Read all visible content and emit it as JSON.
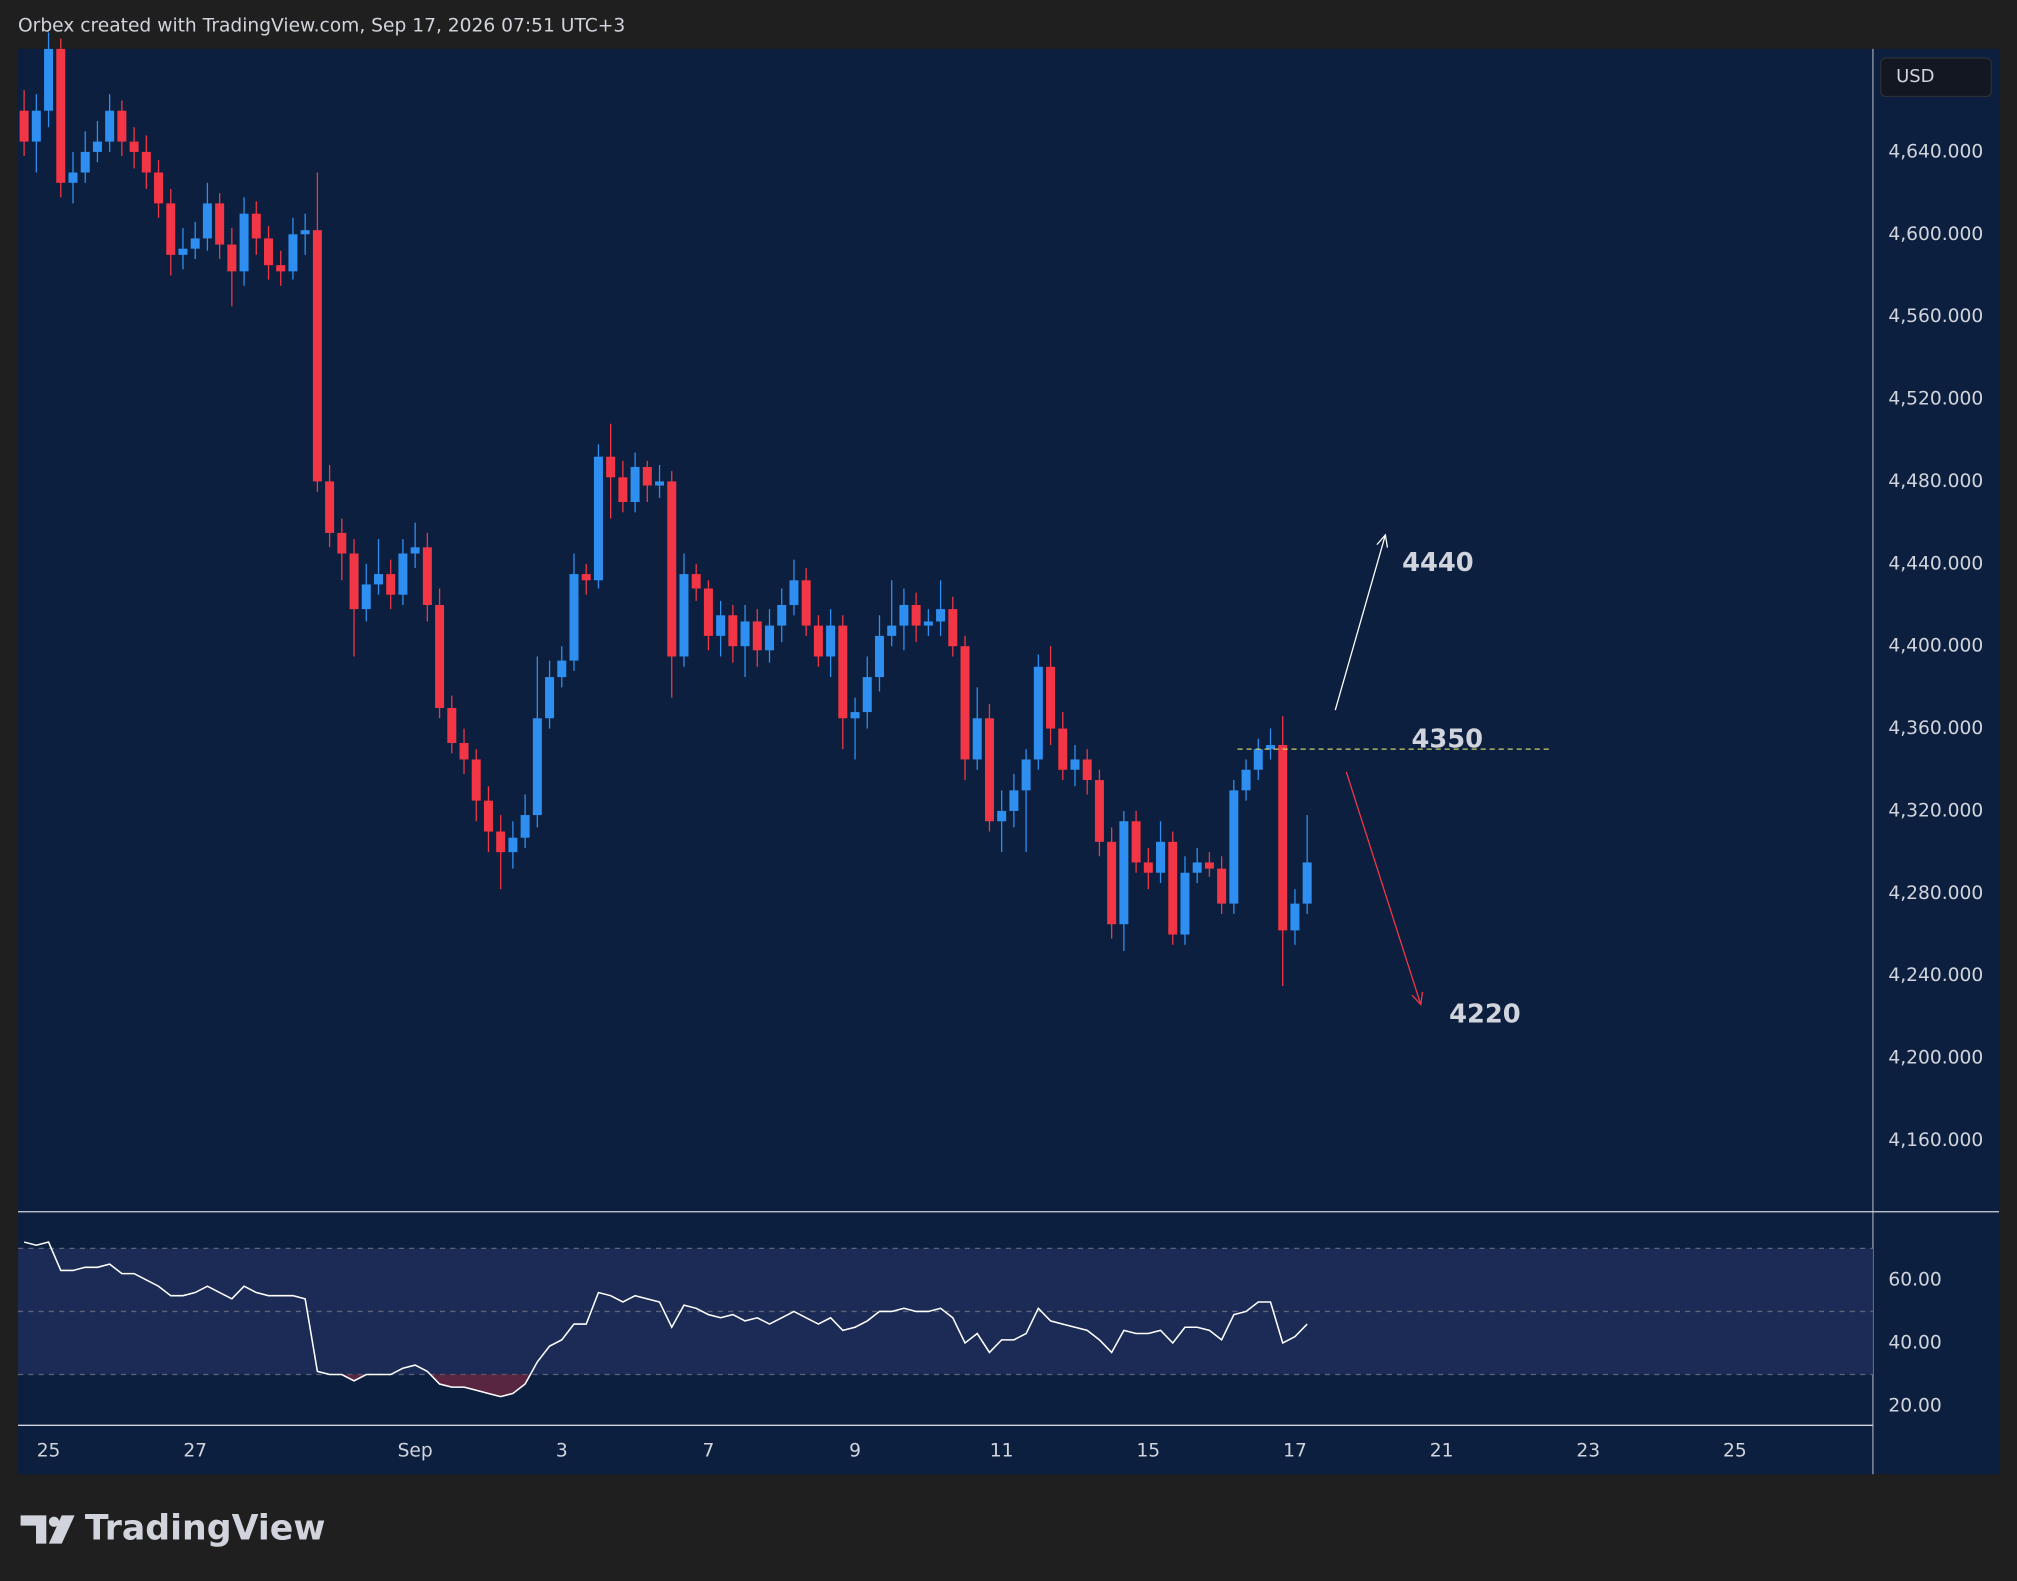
{
  "header": {
    "text": "Orbex created with TradingView.com, Sep 17, 2026 07:51 UTC+3"
  },
  "footer": {
    "brand": "TradingView"
  },
  "chart_data": [
    {
      "type": "candlestick",
      "currency": "USD",
      "up_color": "#2e8ff0",
      "down_color": "#f23645",
      "xlim": [
        -0.5,
        151.3
      ],
      "ylim": [
        4126,
        4690
      ],
      "xticks": [
        {
          "value": 2,
          "label": "25"
        },
        {
          "value": 14,
          "label": "27"
        },
        {
          "value": 32,
          "label": "Sep"
        },
        {
          "value": 44,
          "label": "3"
        },
        {
          "value": 56,
          "label": "7"
        },
        {
          "value": 68,
          "label": "9"
        },
        {
          "value": 80,
          "label": "11"
        },
        {
          "value": 92,
          "label": "15"
        },
        {
          "value": 104,
          "label": "17"
        },
        {
          "value": 116,
          "label": "21"
        },
        {
          "value": 128,
          "label": "23"
        },
        {
          "value": 140,
          "label": "25"
        }
      ],
      "yticks": [
        {
          "value": 4160,
          "label": "4,160.000"
        },
        {
          "value": 4200,
          "label": "4,200.000"
        },
        {
          "value": 4240,
          "label": "4,240.000"
        },
        {
          "value": 4280,
          "label": "4,280.000"
        },
        {
          "value": 4320,
          "label": "4,320.000"
        },
        {
          "value": 4360,
          "label": "4,360.000"
        },
        {
          "value": 4400,
          "label": "4,400.000"
        },
        {
          "value": 4440,
          "label": "4,440.000"
        },
        {
          "value": 4480,
          "label": "4,480.000"
        },
        {
          "value": 4520,
          "label": "4,520.000"
        },
        {
          "value": 4560,
          "label": "4,560.000"
        },
        {
          "value": 4600,
          "label": "4,600.000"
        },
        {
          "value": 4640,
          "label": "4,640.000"
        }
      ],
      "open": [
        4660,
        4645,
        4660,
        4690,
        4625,
        4630,
        4640,
        4645,
        4660,
        4645,
        4640,
        4630,
        4615,
        4590,
        4593,
        4598,
        4615,
        4595,
        4582,
        4610,
        4598,
        4585,
        4582,
        4600,
        4602,
        4480,
        4455,
        4445,
        4418,
        4430,
        4435,
        4425,
        4445,
        4448,
        4420,
        4370,
        4353,
        4345,
        4325,
        4310,
        4300,
        4307,
        4318,
        4365,
        4385,
        4393,
        4435,
        4432,
        4492,
        4482,
        4470,
        4487,
        4478,
        4480,
        4395,
        4435,
        4428,
        4405,
        4415,
        4400,
        4412,
        4398,
        4410,
        4420,
        4432,
        4410,
        4395,
        4410,
        4365,
        4368,
        4385,
        4405,
        4410,
        4420,
        4410,
        4412,
        4418,
        4400,
        4345,
        4365,
        4315,
        4320,
        4330,
        4345,
        4390,
        4360,
        4340,
        4345,
        4335,
        4305,
        4265,
        4315,
        4295,
        4290,
        4305,
        4260,
        4290,
        4295,
        4292,
        4275,
        4330,
        4340,
        4350,
        4352,
        4262,
        4275
      ],
      "high": [
        4670,
        4668,
        4698,
        4695,
        4640,
        4650,
        4655,
        4668,
        4665,
        4652,
        4648,
        4636,
        4622,
        4603,
        4606,
        4625,
        4620,
        4603,
        4618,
        4616,
        4604,
        4592,
        4608,
        4610,
        4630,
        4488,
        4462,
        4452,
        4440,
        4452,
        4442,
        4452,
        4460,
        4455,
        4428,
        4376,
        4360,
        4350,
        4332,
        4318,
        4315,
        4328,
        4395,
        4393,
        4400,
        4445,
        4440,
        4498,
        4508,
        4490,
        4494,
        4490,
        4488,
        4485,
        4445,
        4440,
        4432,
        4422,
        4420,
        4420,
        4418,
        4418,
        4428,
        4442,
        4438,
        4415,
        4418,
        4415,
        4375,
        4395,
        4415,
        4432,
        4428,
        4426,
        4418,
        4432,
        4424,
        4405,
        4380,
        4372,
        4330,
        4338,
        4350,
        4396,
        4400,
        4368,
        4352,
        4350,
        4340,
        4312,
        4320,
        4320,
        4302,
        4315,
        4310,
        4298,
        4302,
        4300,
        4298,
        4335,
        4345,
        4355,
        4360,
        4366,
        4282,
        4318
      ],
      "low": [
        4638,
        4630,
        4652,
        4618,
        4615,
        4625,
        4635,
        4640,
        4638,
        4632,
        4622,
        4608,
        4580,
        4583,
        4588,
        4592,
        4588,
        4565,
        4575,
        4590,
        4578,
        4575,
        4578,
        4590,
        4475,
        4448,
        4432,
        4395,
        4412,
        4425,
        4418,
        4420,
        4438,
        4412,
        4365,
        4348,
        4338,
        4315,
        4300,
        4282,
        4292,
        4302,
        4312,
        4360,
        4380,
        4388,
        4425,
        4428,
        4462,
        4465,
        4465,
        4470,
        4472,
        4375,
        4390,
        4422,
        4398,
        4395,
        4392,
        4385,
        4390,
        4392,
        4402,
        4415,
        4405,
        4390,
        4385,
        4350,
        4345,
        4360,
        4378,
        4400,
        4398,
        4402,
        4405,
        4405,
        4395,
        4335,
        4340,
        4310,
        4300,
        4312,
        4300,
        4340,
        4352,
        4335,
        4332,
        4328,
        4298,
        4258,
        4252,
        4290,
        4282,
        4285,
        4255,
        4255,
        4285,
        4288,
        4270,
        4270,
        4325,
        4335,
        4345,
        4235,
        4255,
        4270
      ],
      "close": [
        4645,
        4660,
        4690,
        4625,
        4630,
        4640,
        4645,
        4660,
        4645,
        4640,
        4630,
        4615,
        4590,
        4593,
        4598,
        4615,
        4595,
        4582,
        4610,
        4598,
        4585,
        4582,
        4600,
        4602,
        4480,
        4455,
        4445,
        4418,
        4430,
        4435,
        4425,
        4445,
        4448,
        4420,
        4370,
        4353,
        4345,
        4325,
        4310,
        4300,
        4307,
        4318,
        4365,
        4385,
        4393,
        4435,
        4432,
        4492,
        4482,
        4470,
        4487,
        4478,
        4480,
        4395,
        4435,
        4428,
        4405,
        4415,
        4400,
        4412,
        4398,
        4410,
        4420,
        4432,
        4410,
        4395,
        4410,
        4365,
        4368,
        4385,
        4405,
        4410,
        4420,
        4410,
        4412,
        4418,
        4400,
        4345,
        4365,
        4315,
        4320,
        4330,
        4345,
        4390,
        4360,
        4340,
        4345,
        4335,
        4305,
        4265,
        4315,
        4295,
        4290,
        4305,
        4260,
        4290,
        4295,
        4292,
        4275,
        4330,
        4340,
        4350,
        4352,
        4262,
        4275,
        4295
      ],
      "level": {
        "text": "4350",
        "value": 4350,
        "x": [
          99.3,
          124.8
        ],
        "color": "#c8d06e"
      },
      "annotations": [
        {
          "text": "4440",
          "from": [
            107.3,
            4369
          ],
          "to": [
            111.4,
            4454
          ],
          "color": "#ffffff"
        },
        {
          "text": "4220",
          "from": [
            108.2,
            4339
          ],
          "to": [
            114.3,
            4226
          ],
          "color": "#f23645"
        }
      ]
    },
    {
      "type": "line",
      "color": "#ffffff",
      "xlim": [
        -0.5,
        151.3
      ],
      "ylim": [
        13.9,
        81.6
      ],
      "yticks": [
        {
          "value": 20,
          "label": "20.00"
        },
        {
          "value": 40,
          "label": "40.00"
        },
        {
          "value": 60,
          "label": "60.00"
        }
      ],
      "levels": [
        30,
        50,
        70
      ],
      "band_color": "#1b2b55",
      "oversold_color": "#7a2a45",
      "values": [
        72,
        71,
        72,
        63,
        63,
        64,
        64,
        65,
        62,
        62,
        60,
        58,
        55,
        55,
        56,
        58,
        56,
        54,
        58,
        56,
        55,
        55,
        55,
        54,
        31,
        30,
        30,
        28,
        30,
        30,
        30,
        32,
        33,
        31,
        27,
        26,
        26,
        25,
        24,
        23,
        24,
        27,
        34,
        39,
        41,
        46,
        46,
        56,
        55,
        53,
        55,
        54,
        53,
        45,
        52,
        51,
        49,
        48,
        49,
        47,
        48,
        46,
        48,
        50,
        48,
        46,
        48,
        44,
        45,
        47,
        50,
        50,
        51,
        50,
        50,
        51,
        48,
        40,
        43,
        37,
        41,
        41,
        43,
        51,
        47,
        46,
        45,
        44,
        41,
        37,
        44,
        43,
        43,
        44,
        40,
        45,
        45,
        44,
        41,
        49,
        50,
        53,
        53,
        40,
        42,
        46
      ]
    }
  ]
}
